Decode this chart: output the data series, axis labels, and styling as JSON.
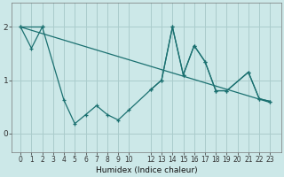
{
  "xlabel": "Humidex (Indice chaleur)",
  "bg_color": "#cce8e8",
  "line_color": "#1a7070",
  "grid_color": "#aacccc",
  "upper_line_x": [
    0,
    1,
    2,
    12,
    13,
    14,
    15,
    16,
    17,
    18,
    19,
    21,
    22,
    23
  ],
  "upper_line_y": [
    2.0,
    1.6,
    2.0,
    0.82,
    1.0,
    2.0,
    1.1,
    1.65,
    1.35,
    0.8,
    0.8,
    1.15,
    0.65,
    0.6
  ],
  "lower_line_x": [
    0,
    2,
    4,
    5,
    6,
    7,
    8,
    9,
    10,
    12,
    13,
    14,
    15,
    16,
    17,
    18,
    19,
    21,
    22,
    23
  ],
  "lower_line_y": [
    2.0,
    2.0,
    0.62,
    0.18,
    0.35,
    0.52,
    0.35,
    0.25,
    0.44,
    0.82,
    1.0,
    2.0,
    1.1,
    1.65,
    1.35,
    0.8,
    0.8,
    1.15,
    0.65,
    0.6
  ],
  "trend_x": [
    0,
    23
  ],
  "trend_y": [
    2.0,
    0.58
  ],
  "ylim": [
    -0.35,
    2.45
  ],
  "xlim": [
    -0.8,
    24.0
  ],
  "yticks": [
    0,
    1,
    2
  ],
  "xticks": [
    0,
    1,
    2,
    3,
    4,
    5,
    6,
    7,
    8,
    9,
    10,
    12,
    13,
    14,
    15,
    16,
    17,
    18,
    19,
    20,
    21,
    22,
    23
  ],
  "xtick_labels": [
    "0",
    "1",
    "2",
    "3",
    "4",
    "5",
    "6",
    "7",
    "8",
    "9",
    "10",
    "12",
    "13",
    "14",
    "15",
    "16",
    "17",
    "18",
    "19",
    "20",
    "21",
    "22",
    "23"
  ]
}
